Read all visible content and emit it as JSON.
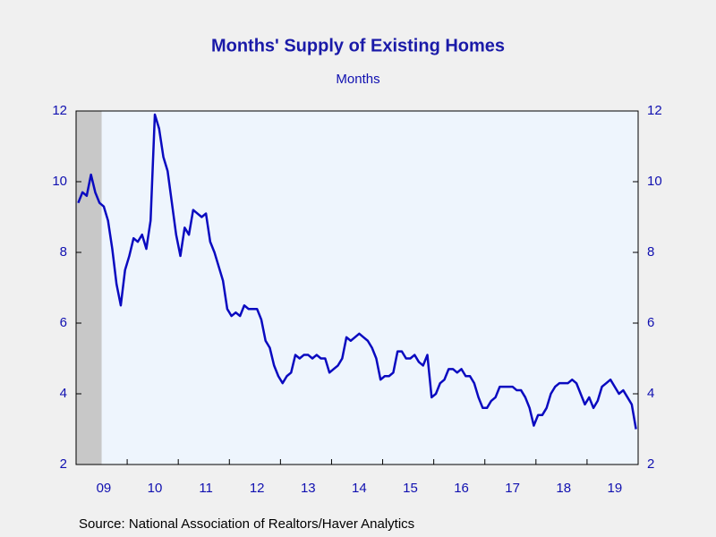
{
  "chart_data": {
    "type": "line",
    "title": "Months' Supply of Existing Homes",
    "subtitle": "Months",
    "source": "Source:  National Association of Realtors/Haver Analytics",
    "categories": [
      null,
      null,
      null,
      null,
      null,
      null,
      "09",
      null,
      null,
      null,
      null,
      null,
      null,
      null,
      null,
      null,
      null,
      null,
      "10",
      null,
      null,
      null,
      null,
      null,
      null,
      null,
      null,
      null,
      null,
      null,
      "11",
      null,
      null,
      null,
      null,
      null,
      null,
      null,
      null,
      null,
      null,
      null,
      "12",
      null,
      null,
      null,
      null,
      null,
      null,
      null,
      null,
      null,
      null,
      null,
      "13",
      null,
      null,
      null,
      null,
      null,
      null,
      null,
      null,
      null,
      null,
      null,
      "14",
      null,
      null,
      null,
      null,
      null,
      null,
      null,
      null,
      null,
      null,
      null,
      "15",
      null,
      null,
      null,
      null,
      null,
      null,
      null,
      null,
      null,
      null,
      null,
      "16",
      null,
      null,
      null,
      null,
      null,
      null,
      null,
      null,
      null,
      null,
      null,
      "17",
      null,
      null,
      null,
      null,
      null,
      null,
      null,
      null,
      null,
      null,
      null,
      "18",
      null,
      null,
      null,
      null,
      null,
      null,
      null,
      null,
      null,
      null,
      null,
      "19",
      null,
      null,
      null,
      null,
      null
    ],
    "series": [
      {
        "name": "Months' Supply",
        "color": "#0a0ac0",
        "values": [
          9.4,
          9.7,
          9.6,
          10.2,
          9.7,
          9.4,
          9.3,
          8.9,
          8.1,
          7.1,
          6.5,
          7.5,
          7.9,
          8.4,
          8.3,
          8.5,
          8.1,
          8.9,
          11.9,
          11.5,
          10.7,
          10.3,
          9.4,
          8.5,
          7.9,
          8.7,
          8.5,
          9.2,
          9.1,
          9.0,
          9.1,
          8.3,
          8.0,
          7.6,
          7.2,
          6.4,
          6.2,
          6.3,
          6.2,
          6.5,
          6.4,
          6.4,
          6.4,
          6.1,
          5.5,
          5.3,
          4.8,
          4.5,
          4.3,
          4.5,
          4.6,
          5.1,
          5.0,
          5.1,
          5.1,
          5.0,
          5.1,
          5.0,
          5.0,
          4.6,
          4.7,
          4.8,
          5.0,
          5.6,
          5.5,
          5.6,
          5.7,
          5.6,
          5.5,
          5.3,
          5.0,
          4.4,
          4.5,
          4.5,
          4.6,
          5.2,
          5.2,
          5.0,
          5.0,
          5.1,
          4.9,
          4.8,
          5.1,
          3.9,
          4.0,
          4.3,
          4.4,
          4.7,
          4.7,
          4.6,
          4.7,
          4.5,
          4.5,
          4.3,
          3.9,
          3.6,
          3.6,
          3.8,
          3.9,
          4.2,
          4.2,
          4.2,
          4.2,
          4.1,
          4.1,
          3.9,
          3.6,
          3.1,
          3.4,
          3.4,
          3.6,
          4.0,
          4.2,
          4.3,
          4.3,
          4.3,
          4.4,
          4.3,
          4.0,
          3.7,
          3.9,
          3.6,
          3.8,
          4.2,
          4.3,
          4.4,
          4.2,
          4.0,
          4.1,
          3.9,
          3.7,
          3.0
        ]
      }
    ],
    "recession": [
      0,
      5
    ],
    "ylim": [
      2,
      12
    ],
    "yticks": [
      2,
      4,
      6,
      8,
      10,
      12
    ],
    "grid": false
  }
}
